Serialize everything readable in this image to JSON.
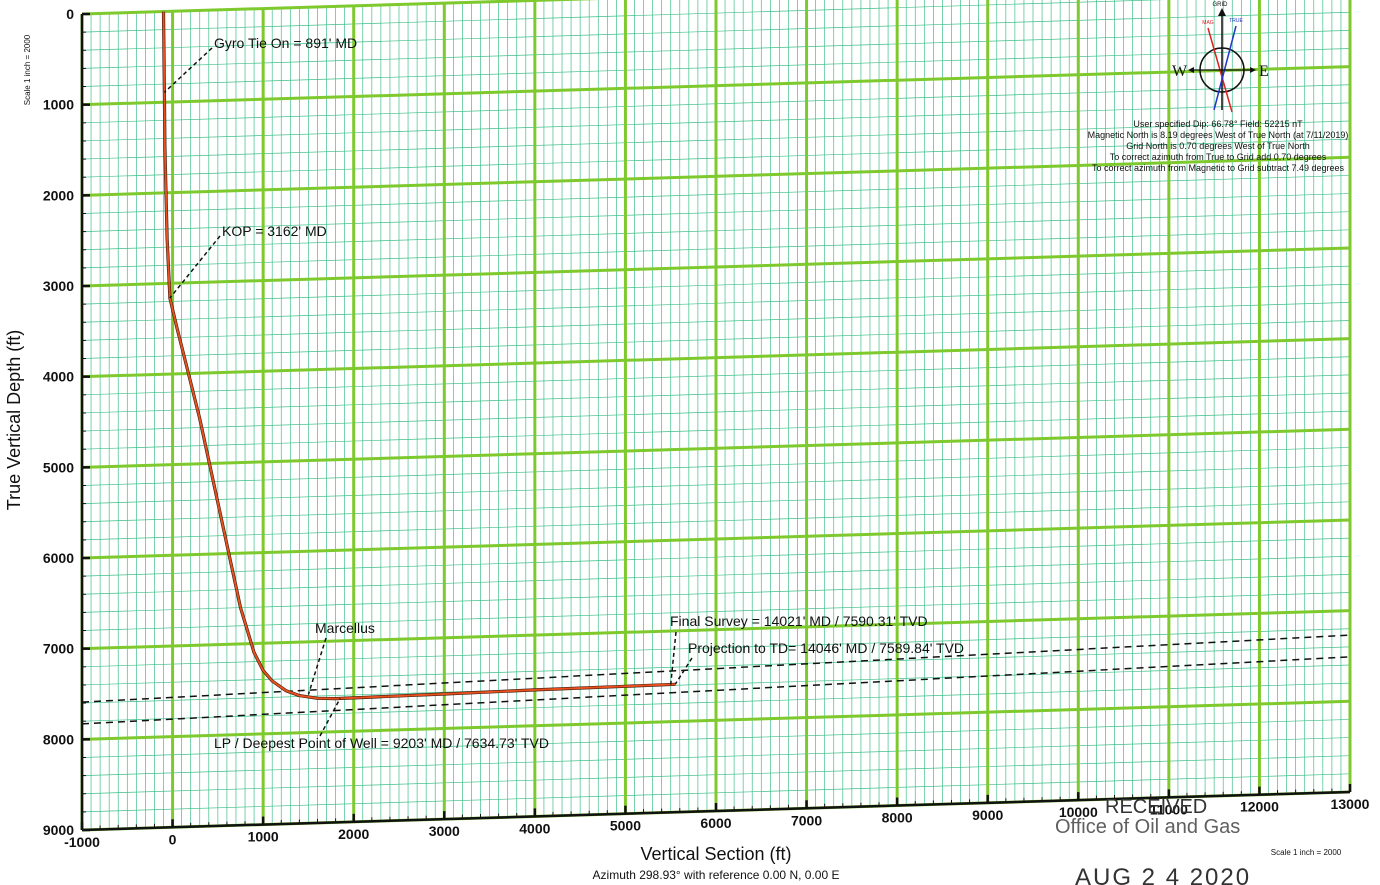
{
  "chart_data": {
    "type": "line",
    "xlabel": "Vertical Section (ft)",
    "ylabel": "True Vertical Depth (ft)",
    "subtitle": "Azimuth 298.93° with reference 0.00 N, 0.00 E",
    "xlim": [
      -1000,
      13000
    ],
    "ylim": [
      0,
      9000
    ],
    "x_ticks": [
      "-1000",
      "0",
      "1000",
      "2000",
      "3000",
      "4000",
      "5000",
      "6000",
      "7000",
      "8000",
      "9000",
      "10000",
      "11000",
      "12000",
      "13000"
    ],
    "y_ticks": [
      "0",
      "1000",
      "2000",
      "3000",
      "4000",
      "5000",
      "6000",
      "7000",
      "8000",
      "9000"
    ],
    "scale_left": "Scale 1 inch = 2000",
    "scale_bottom": "Scale 1 inch = 2000",
    "grid": true,
    "series": [
      {
        "x": [
          -100,
          -95,
          -90,
          -85,
          -60,
          -30,
          50,
          150,
          300,
          450,
          600,
          750,
          900,
          1000,
          1100,
          1250,
          1400,
          1600,
          1800,
          2200,
          3000,
          4000,
          5000,
          5550
        ],
        "y": [
          0,
          500,
          891,
          1500,
          2500,
          3162,
          3500,
          3900,
          4500,
          5200,
          5900,
          6600,
          7100,
          7300,
          7420,
          7530,
          7590,
          7625,
          7634.73,
          7630,
          7620,
          7605,
          7595,
          7589.84
        ],
        "color": "#e8501e"
      }
    ],
    "formation_lines": [
      {
        "x": [
          -1000,
          13000
        ],
        "y": [
          7590,
          7270
        ]
      },
      {
        "x": [
          -1000,
          13000
        ],
        "y": [
          7830,
          7510
        ]
      }
    ],
    "annotations": [
      {
        "text": "Gyro Tie On = 891' MD",
        "x": -90,
        "y": 891
      },
      {
        "text": "KOP = 3162' MD",
        "x": -30,
        "y": 3162
      },
      {
        "text": "Marcellus",
        "x": 1500,
        "y": 7580
      },
      {
        "text": "Final Survey = 14021' MD / 7590.31' TVD",
        "x": 5500,
        "y": 7590
      },
      {
        "text": "Projection to TD= 14046' MD / 7589.84' TVD",
        "x": 5550,
        "y": 7589
      },
      {
        "text": "LP / Deepest Point of Well = 9203' MD / 7634.73' TVD",
        "x": 1850,
        "y": 7634
      }
    ]
  },
  "compass": {
    "top_label": "GRID",
    "west": "W",
    "east": "E",
    "mag_label": "MAG",
    "true_label": "TRUE",
    "notes": [
      "User specified Dip: 66.78°  Field: 52215 nT",
      "Magnetic North is 8.19 degrees West of True North (at 7/11/2019)",
      "Grid North is 0.70 degrees West of True North",
      "To correct azimuth from True to Grid add 0.70 degrees",
      "To correct azimuth from Magnetic to Grid subtract 7.49 degrees"
    ]
  },
  "stamp": {
    "received": "RECEIVED",
    "office": "Office of Oil and Gas",
    "date": "AUG 2 4 2020"
  },
  "colors": {
    "major_grid": "#7ec92e",
    "minor_grid": "#3fbf8a",
    "well_path": "#e8501e"
  }
}
